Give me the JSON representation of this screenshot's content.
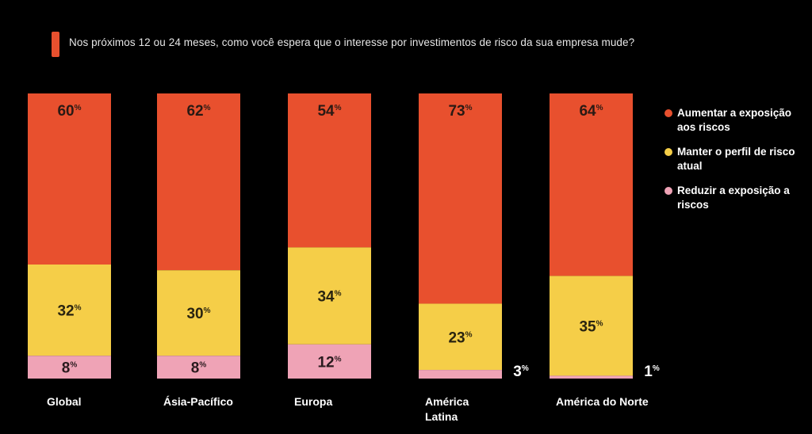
{
  "question": "Nos próximos 12 ou 24 meses, como você espera que o interesse por investimentos de risco da sua empresa mude?",
  "colors": {
    "background": "#000000",
    "marker": "#E8502E",
    "aumentar": "#E8502E",
    "manter": "#F5CE48",
    "reduzir": "#EFA3B6"
  },
  "legend": [
    {
      "label": "Aumentar a exposição aos riscos",
      "color": "#E8502E"
    },
    {
      "label": "Manter o perfil de risco atual",
      "color": "#F5CE48"
    },
    {
      "label": "Reduzir a exposição a riscos",
      "color": "#EFA3B6"
    }
  ],
  "chart_data": {
    "type": "bar",
    "stacked": true,
    "orientation": "vertical",
    "categories": [
      "Global",
      "Ásia-Pacífico",
      "Europa",
      "América Latina",
      "América do Norte"
    ],
    "unit": "%",
    "series": [
      {
        "name": "Aumentar a exposição aos riscos",
        "color": "#E8502E",
        "values": [
          60,
          62,
          54,
          73,
          64
        ]
      },
      {
        "name": "Manter o perfil de risco atual",
        "color": "#F5CE48",
        "values": [
          32,
          30,
          34,
          23,
          35
        ]
      },
      {
        "name": "Reduzir a exposição a riscos",
        "color": "#EFA3B6",
        "values": [
          8,
          8,
          12,
          3,
          1
        ]
      }
    ],
    "legend_position": "right",
    "grid": false,
    "axes_visible": false
  }
}
